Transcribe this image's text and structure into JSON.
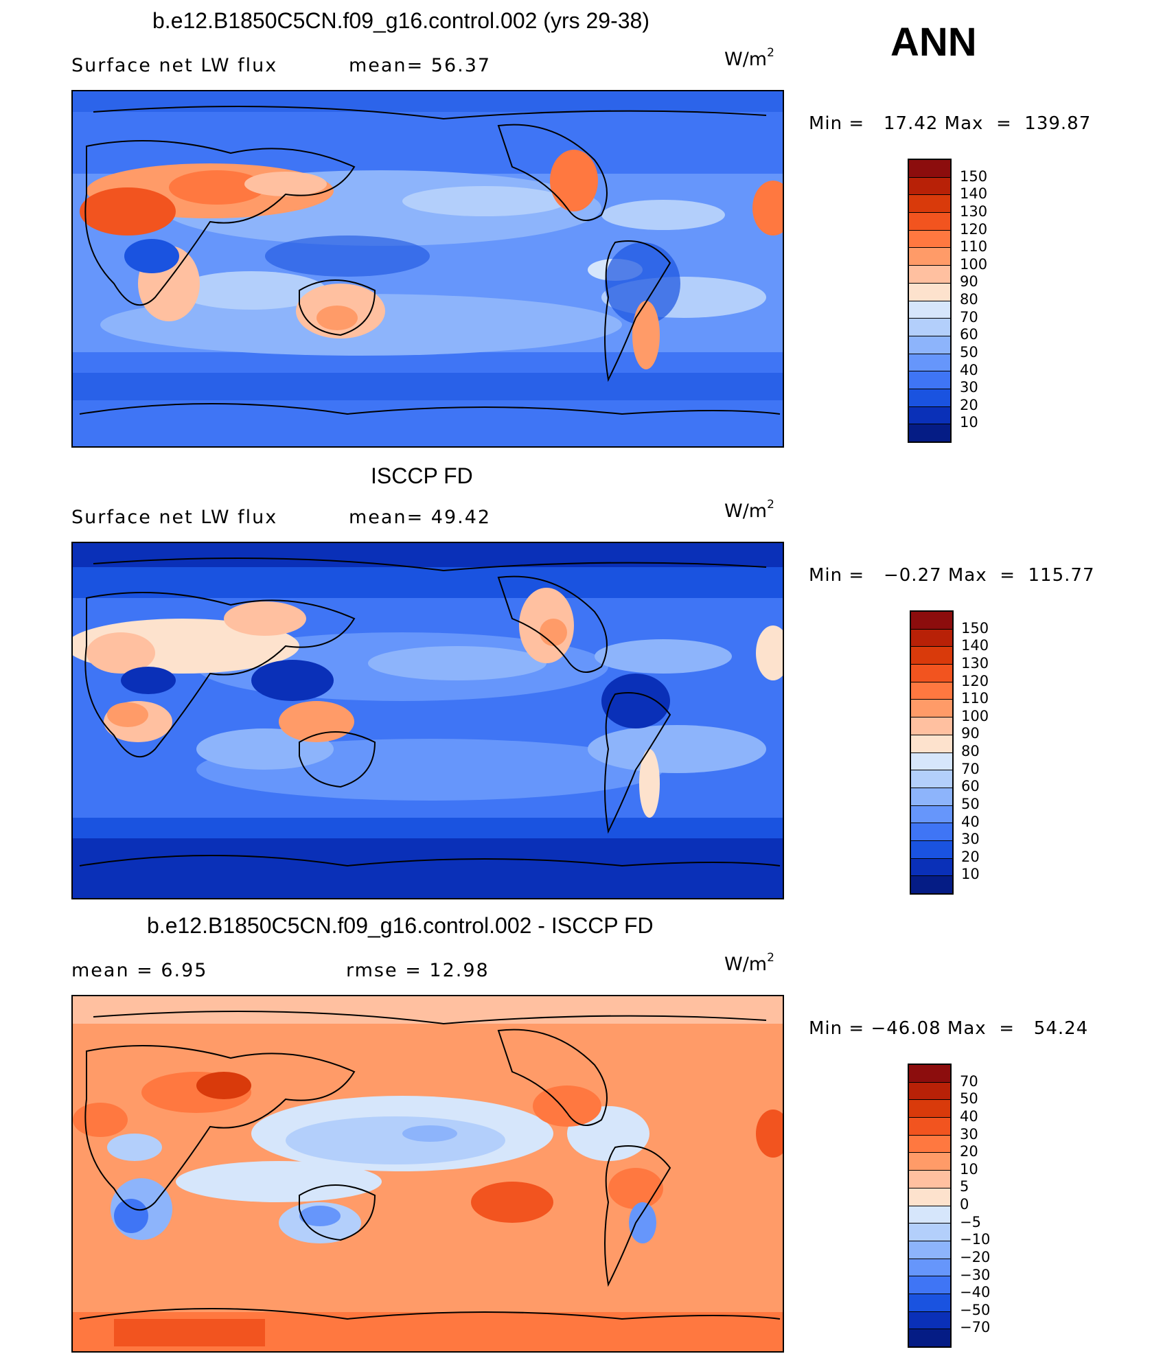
{
  "chart_data": [
    {
      "type": "heatmap",
      "title": "b.e12.B1850C5CN.f09_g16.control.002 (yrs 29-38)",
      "left_label": "Surface net LW flux",
      "center_label": "mean=  56.37",
      "units": "W/m",
      "units_sup": "2",
      "stats": "Min =   17.42 Max  =  139.87",
      "colorbar": {
        "labels": [
          "150",
          "140",
          "130",
          "120",
          "110",
          "100",
          "90",
          "80",
          "70",
          "60",
          "50",
          "40",
          "30",
          "20",
          "10"
        ],
        "colors": [
          "#8c0d0d",
          "#b82107",
          "#d93a0b",
          "#f2541f",
          "#ff7840",
          "#ff9b68",
          "#ffc0a0",
          "#fde2cd",
          "#d6e6fb",
          "#b3cffb",
          "#8db4fb",
          "#6696fb",
          "#3f75f5",
          "#1a53e0",
          "#0a30b8",
          "#051c85"
        ]
      }
    },
    {
      "type": "heatmap",
      "title": "ISCCP FD",
      "left_label": "Surface net LW flux",
      "center_label": "mean=  49.42",
      "units": "W/m",
      "units_sup": "2",
      "stats": "Min =   −0.27 Max  =  115.77",
      "colorbar": {
        "labels": [
          "150",
          "140",
          "130",
          "120",
          "110",
          "100",
          "90",
          "80",
          "70",
          "60",
          "50",
          "40",
          "30",
          "20",
          "10"
        ],
        "colors": [
          "#8c0d0d",
          "#b82107",
          "#d93a0b",
          "#f2541f",
          "#ff7840",
          "#ff9b68",
          "#ffc0a0",
          "#fde2cd",
          "#d6e6fb",
          "#b3cffb",
          "#8db4fb",
          "#6696fb",
          "#3f75f5",
          "#1a53e0",
          "#0a30b8",
          "#051c85"
        ]
      }
    },
    {
      "type": "heatmap",
      "title": "b.e12.B1850C5CN.f09_g16.control.002 - ISCCP FD",
      "left_label": "mean =    6.95",
      "center_label": "rmse =   12.98",
      "units": "W/m",
      "units_sup": "2",
      "stats": "Min = −46.08 Max  =   54.24",
      "colorbar": {
        "labels": [
          "70",
          "50",
          "40",
          "30",
          "20",
          "10",
          "5",
          "0",
          "−5",
          "−10",
          "−20",
          "−30",
          "−40",
          "−50",
          "−70"
        ],
        "colors": [
          "#8c0d0d",
          "#b82107",
          "#d93a0b",
          "#f2541f",
          "#ff7840",
          "#ff9b68",
          "#ffc0a0",
          "#fde2cd",
          "#d6e6fb",
          "#b3cffb",
          "#8db4fb",
          "#6696fb",
          "#3f75f5",
          "#1a53e0",
          "#0a30b8",
          "#051c85"
        ]
      }
    }
  ],
  "season_label": "ANN"
}
